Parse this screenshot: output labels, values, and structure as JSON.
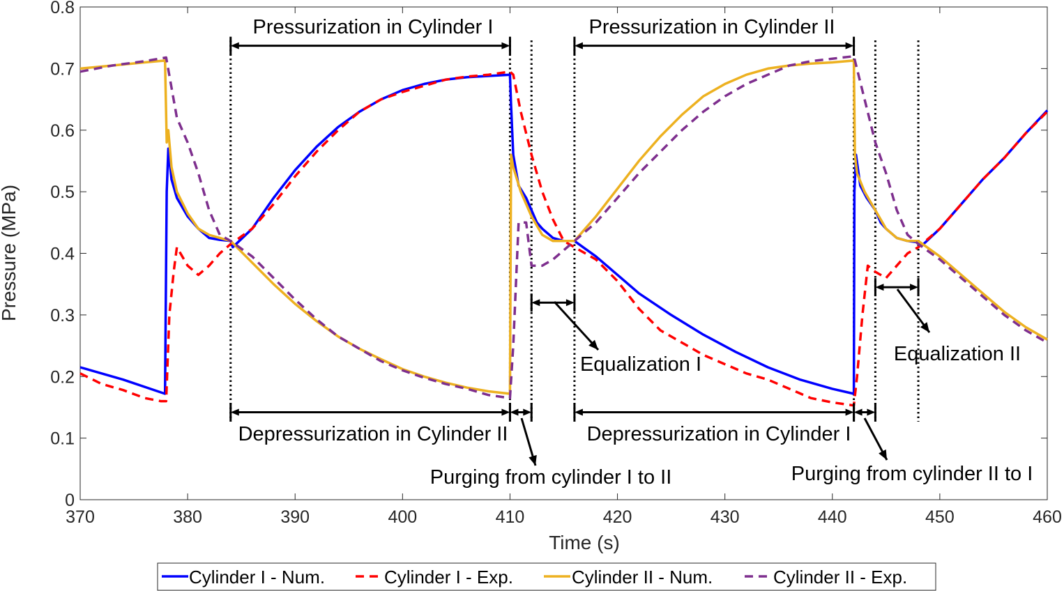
{
  "chart_data": {
    "type": "line",
    "title": "",
    "xlabel": "Time (s)",
    "ylabel": "Pressure (MPa)",
    "xlim": [
      370,
      460
    ],
    "ylim": [
      0,
      0.8
    ],
    "xticks": [
      370,
      380,
      390,
      400,
      410,
      420,
      430,
      440,
      450,
      460
    ],
    "yticks": [
      0,
      0.1,
      0.2,
      0.3,
      0.4,
      0.5,
      0.6,
      0.7,
      0.8
    ],
    "x_tick_labels": [
      "370",
      "380",
      "390",
      "400",
      "410",
      "420",
      "430",
      "440",
      "450",
      "460"
    ],
    "y_tick_labels": [
      "0",
      "0.1",
      "0.2",
      "0.3",
      "0.4",
      "0.5",
      "0.6",
      "0.7",
      "0.8"
    ],
    "grid": false,
    "legend_position": "bottom-outside",
    "series": [
      {
        "name": "Cylinder I - Num.",
        "color": "#0000ff",
        "style": "solid",
        "points": [
          [
            370,
            0.215
          ],
          [
            374,
            0.195
          ],
          [
            377.9,
            0.172
          ],
          [
            378.05,
            0.5
          ],
          [
            378.2,
            0.57
          ],
          [
            378.5,
            0.52
          ],
          [
            379,
            0.49
          ],
          [
            380,
            0.46
          ],
          [
            381,
            0.44
          ],
          [
            382,
            0.425
          ],
          [
            383,
            0.422
          ],
          [
            384,
            0.42
          ],
          [
            384.2,
            0.41
          ],
          [
            386,
            0.44
          ],
          [
            388,
            0.49
          ],
          [
            390,
            0.535
          ],
          [
            392,
            0.573
          ],
          [
            394,
            0.605
          ],
          [
            396,
            0.63
          ],
          [
            398,
            0.65
          ],
          [
            400,
            0.665
          ],
          [
            402,
            0.675
          ],
          [
            404,
            0.682
          ],
          [
            406,
            0.686
          ],
          [
            408,
            0.688
          ],
          [
            410,
            0.69
          ],
          [
            410.1,
            0.64
          ],
          [
            410.3,
            0.56
          ],
          [
            410.8,
            0.51
          ],
          [
            411.5,
            0.49
          ],
          [
            412,
            0.47
          ],
          [
            412.5,
            0.45
          ],
          [
            413,
            0.44
          ],
          [
            414,
            0.425
          ],
          [
            415,
            0.42
          ],
          [
            416,
            0.42
          ],
          [
            418,
            0.395
          ],
          [
            420,
            0.365
          ],
          [
            422,
            0.335
          ],
          [
            425,
            0.3
          ],
          [
            428,
            0.268
          ],
          [
            431,
            0.24
          ],
          [
            434,
            0.215
          ],
          [
            437,
            0.195
          ],
          [
            440,
            0.18
          ],
          [
            442,
            0.172
          ],
          [
            442.05,
            0.5
          ],
          [
            442.2,
            0.56
          ],
          [
            442.6,
            0.51
          ],
          [
            443.2,
            0.49
          ],
          [
            444,
            0.47
          ],
          [
            444.5,
            0.45
          ],
          [
            445,
            0.44
          ],
          [
            446,
            0.425
          ],
          [
            447,
            0.42
          ],
          [
            448,
            0.418
          ],
          [
            448.3,
            0.412
          ],
          [
            450,
            0.44
          ],
          [
            452,
            0.48
          ],
          [
            454,
            0.52
          ],
          [
            456,
            0.555
          ],
          [
            458,
            0.595
          ],
          [
            460,
            0.632
          ]
        ]
      },
      {
        "name": "Cylinder I - Exp.",
        "color": "#ff0000",
        "style": "dashed",
        "points": [
          [
            370,
            0.205
          ],
          [
            372,
            0.188
          ],
          [
            374,
            0.178
          ],
          [
            376,
            0.165
          ],
          [
            377.5,
            0.16
          ],
          [
            378,
            0.16
          ],
          [
            378.3,
            0.3
          ],
          [
            378.7,
            0.37
          ],
          [
            379,
            0.41
          ],
          [
            380,
            0.38
          ],
          [
            381,
            0.365
          ],
          [
            382,
            0.38
          ],
          [
            383,
            0.4
          ],
          [
            384,
            0.415
          ],
          [
            386,
            0.44
          ],
          [
            388,
            0.48
          ],
          [
            390,
            0.525
          ],
          [
            392,
            0.565
          ],
          [
            394,
            0.6
          ],
          [
            396,
            0.63
          ],
          [
            398,
            0.65
          ],
          [
            400,
            0.662
          ],
          [
            402,
            0.672
          ],
          [
            404,
            0.682
          ],
          [
            406,
            0.687
          ],
          [
            408,
            0.69
          ],
          [
            410,
            0.695
          ],
          [
            410.3,
            0.69
          ],
          [
            411,
            0.63
          ],
          [
            412,
            0.56
          ],
          [
            413,
            0.5
          ],
          [
            414,
            0.455
          ],
          [
            415,
            0.42
          ],
          [
            416,
            0.41
          ],
          [
            418,
            0.39
          ],
          [
            420,
            0.355
          ],
          [
            422,
            0.31
          ],
          [
            424,
            0.275
          ],
          [
            426,
            0.255
          ],
          [
            428,
            0.235
          ],
          [
            430,
            0.22
          ],
          [
            432,
            0.205
          ],
          [
            434,
            0.195
          ],
          [
            436,
            0.18
          ],
          [
            438,
            0.165
          ],
          [
            440,
            0.158
          ],
          [
            442,
            0.153
          ],
          [
            442.3,
            0.2
          ],
          [
            442.8,
            0.3
          ],
          [
            443.3,
            0.38
          ],
          [
            444,
            0.37
          ],
          [
            445,
            0.36
          ],
          [
            446,
            0.38
          ],
          [
            447,
            0.4
          ],
          [
            448,
            0.41
          ],
          [
            450,
            0.44
          ],
          [
            452,
            0.48
          ],
          [
            454,
            0.52
          ],
          [
            456,
            0.555
          ],
          [
            458,
            0.595
          ],
          [
            460,
            0.63
          ]
        ]
      },
      {
        "name": "Cylinder II - Num.",
        "color": "#edb120",
        "style": "solid",
        "points": [
          [
            370,
            0.7
          ],
          [
            373,
            0.705
          ],
          [
            376,
            0.71
          ],
          [
            377.9,
            0.713
          ],
          [
            378.05,
            0.58
          ],
          [
            378.2,
            0.6
          ],
          [
            378.5,
            0.54
          ],
          [
            379,
            0.5
          ],
          [
            380,
            0.465
          ],
          [
            381,
            0.44
          ],
          [
            382,
            0.43
          ],
          [
            383,
            0.425
          ],
          [
            384,
            0.42
          ],
          [
            386,
            0.385
          ],
          [
            388,
            0.35
          ],
          [
            390,
            0.318
          ],
          [
            392,
            0.29
          ],
          [
            394,
            0.265
          ],
          [
            396,
            0.245
          ],
          [
            398,
            0.228
          ],
          [
            400,
            0.212
          ],
          [
            402,
            0.2
          ],
          [
            404,
            0.19
          ],
          [
            406,
            0.182
          ],
          [
            408,
            0.176
          ],
          [
            410,
            0.172
          ],
          [
            410.1,
            0.56
          ],
          [
            410.3,
            0.54
          ],
          [
            411,
            0.5
          ],
          [
            412,
            0.46
          ],
          [
            413,
            0.43
          ],
          [
            414,
            0.42
          ],
          [
            416,
            0.42
          ],
          [
            418,
            0.46
          ],
          [
            420,
            0.505
          ],
          [
            422,
            0.55
          ],
          [
            424,
            0.59
          ],
          [
            426,
            0.625
          ],
          [
            428,
            0.655
          ],
          [
            430,
            0.675
          ],
          [
            432,
            0.69
          ],
          [
            434,
            0.7
          ],
          [
            436,
            0.705
          ],
          [
            438,
            0.708
          ],
          [
            440,
            0.71
          ],
          [
            442,
            0.713
          ],
          [
            442.1,
            0.56
          ],
          [
            442.3,
            0.53
          ],
          [
            443,
            0.5
          ],
          [
            444,
            0.47
          ],
          [
            445,
            0.44
          ],
          [
            446,
            0.425
          ],
          [
            447,
            0.42
          ],
          [
            448,
            0.42
          ],
          [
            450,
            0.395
          ],
          [
            452,
            0.365
          ],
          [
            454,
            0.335
          ],
          [
            456,
            0.305
          ],
          [
            458,
            0.28
          ],
          [
            460,
            0.26
          ]
        ]
      },
      {
        "name": "Cylinder II - Exp.",
        "color": "#7e2f8e",
        "style": "dashed",
        "points": [
          [
            370,
            0.695
          ],
          [
            373,
            0.705
          ],
          [
            376,
            0.712
          ],
          [
            378,
            0.718
          ],
          [
            379,
            0.62
          ],
          [
            380,
            0.58
          ],
          [
            381,
            0.53
          ],
          [
            382,
            0.47
          ],
          [
            383,
            0.43
          ],
          [
            384,
            0.42
          ],
          [
            386,
            0.395
          ],
          [
            388,
            0.36
          ],
          [
            390,
            0.325
          ],
          [
            392,
            0.293
          ],
          [
            394,
            0.265
          ],
          [
            396,
            0.245
          ],
          [
            398,
            0.225
          ],
          [
            400,
            0.21
          ],
          [
            402,
            0.198
          ],
          [
            404,
            0.188
          ],
          [
            406,
            0.18
          ],
          [
            408,
            0.17
          ],
          [
            410,
            0.165
          ],
          [
            410.3,
            0.25
          ],
          [
            410.8,
            0.45
          ],
          [
            411.5,
            0.45
          ],
          [
            412,
            0.38
          ],
          [
            413,
            0.38
          ],
          [
            414,
            0.39
          ],
          [
            415,
            0.405
          ],
          [
            416,
            0.42
          ],
          [
            418,
            0.45
          ],
          [
            420,
            0.49
          ],
          [
            422,
            0.53
          ],
          [
            424,
            0.565
          ],
          [
            426,
            0.6
          ],
          [
            428,
            0.63
          ],
          [
            430,
            0.655
          ],
          [
            432,
            0.675
          ],
          [
            434,
            0.69
          ],
          [
            436,
            0.705
          ],
          [
            438,
            0.712
          ],
          [
            440,
            0.716
          ],
          [
            442,
            0.72
          ],
          [
            443,
            0.65
          ],
          [
            444,
            0.58
          ],
          [
            445,
            0.53
          ],
          [
            446,
            0.47
          ],
          [
            447,
            0.43
          ],
          [
            448,
            0.415
          ],
          [
            450,
            0.39
          ],
          [
            452,
            0.36
          ],
          [
            454,
            0.33
          ],
          [
            456,
            0.3
          ],
          [
            458,
            0.275
          ],
          [
            460,
            0.255
          ]
        ]
      }
    ],
    "phase_markers": [
      384,
      410,
      412,
      416,
      442,
      444,
      448
    ],
    "annotations": [
      {
        "id": "press1",
        "text": "Pressurization in Cylinder I",
        "x1": 384,
        "x2": 410,
        "y": 0.737
      },
      {
        "id": "press2",
        "text": "Pressurization in Cylinder II",
        "x1": 416,
        "x2": 442,
        "y": 0.737
      },
      {
        "id": "depress2",
        "text": "Depressurization in Cylinder II",
        "x1": 384,
        "x2": 410,
        "y": 0.142
      },
      {
        "id": "depress1",
        "text": "Depressurization in Cylinder I",
        "x1": 416,
        "x2": 442,
        "y": 0.142
      },
      {
        "id": "equal1",
        "text": "Equalization I",
        "x1": 412,
        "x2": 416,
        "y": 0.32
      },
      {
        "id": "equal2",
        "text": "Equalization II",
        "x1": 444,
        "x2": 448,
        "y": 0.345
      },
      {
        "id": "purge1",
        "text": "Purging from cylinder I to II",
        "x1": 410,
        "x2": 412,
        "y": 0.142
      },
      {
        "id": "purge2",
        "text": "Purging from cylinder II to I",
        "x1": 442,
        "x2": 444,
        "y": 0.142
      }
    ]
  }
}
